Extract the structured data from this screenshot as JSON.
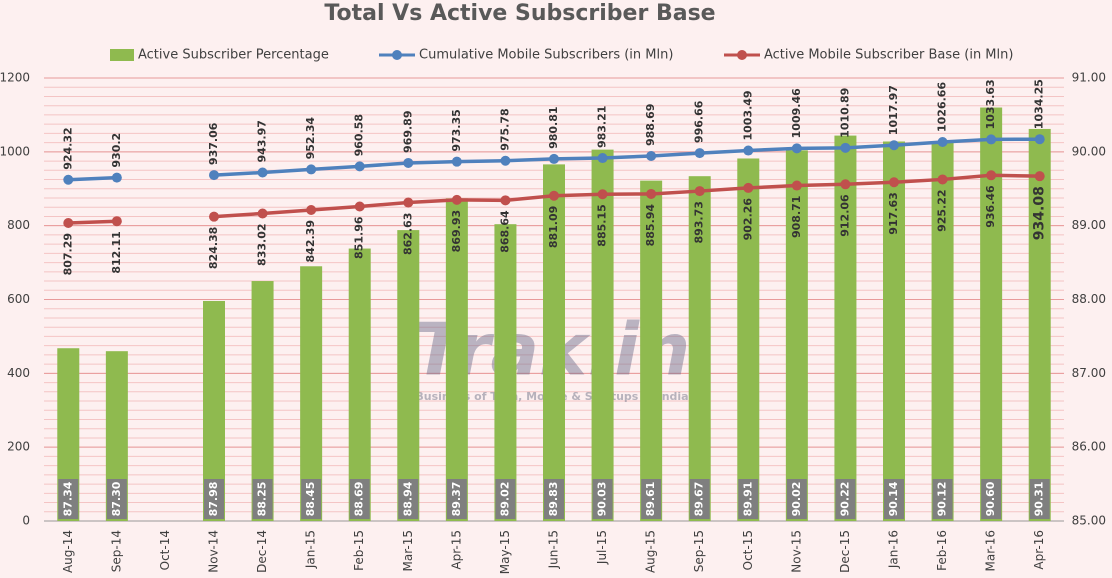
{
  "chart_data": {
    "type": "bar-line",
    "title": "Total Vs Active Subscriber Base",
    "watermark": "Trak.in",
    "watermark_subtitle": "Business of Tech, Mobile & Startups in India",
    "legend": "top",
    "grid": true,
    "categories": [
      "Aug-14",
      "Sep-14",
      "Oct-14",
      "Nov-14",
      "Dec-14",
      "Jan-15",
      "Feb-15",
      "Mar-15",
      "Apr-15",
      "May-15",
      "Jun-15",
      "Jul-15",
      "Aug-15",
      "Sep-15",
      "Oct-15",
      "Nov-15",
      "Dec-15",
      "Jan-16",
      "Feb-16",
      "Mar-16",
      "Apr-16"
    ],
    "ylim": [
      0,
      1200
    ],
    "yticks": [
      0,
      200,
      400,
      600,
      800,
      1000,
      1200
    ],
    "y2lim": [
      85,
      91
    ],
    "y2ticks": [
      {
        "value": 85,
        "label": "85.00"
      },
      {
        "value": 86,
        "label": "86.00"
      },
      {
        "value": 87,
        "label": "87.00"
      },
      {
        "value": 88,
        "label": "88.00"
      },
      {
        "value": 89,
        "label": "89.00"
      },
      {
        "value": 90,
        "label": "90.00"
      },
      {
        "value": 91,
        "label": "91.00"
      }
    ],
    "series": [
      {
        "name": "Active Subscriber Percentage",
        "type": "bar",
        "axis": "y2",
        "color": "#8fba4f",
        "values": [
          87.34,
          87.3,
          null,
          87.98,
          88.25,
          88.45,
          88.69,
          88.94,
          89.37,
          89.02,
          89.83,
          90.03,
          89.61,
          89.67,
          89.91,
          90.02,
          90.22,
          90.14,
          90.12,
          90.6,
          90.31
        ],
        "value_labels": [
          "87.34",
          "87.30",
          null,
          "87.98",
          "88.25",
          "88.45",
          "88.69",
          "88.94",
          "89.37",
          "89.02",
          "89.83",
          "90.03",
          "89.61",
          "89.67",
          "89.91",
          "90.02",
          "90.22",
          "90.14",
          "90.12",
          "90.60",
          "90.31"
        ]
      },
      {
        "name": "Cumulative Mobile Subscribers (in Mln)",
        "type": "line",
        "color": "#4f81bd",
        "values": [
          924.32,
          930.2,
          null,
          937.06,
          943.97,
          952.34,
          960.58,
          969.89,
          973.35,
          975.78,
          980.81,
          983.21,
          988.69,
          996.66,
          1003.49,
          1009.46,
          1010.89,
          1017.97,
          1026.66,
          1033.63,
          1034.25
        ]
      },
      {
        "name": "Active Mobile Subscriber Base (in Mln)",
        "type": "line",
        "color": "#c0504d",
        "values": [
          807.29,
          812.11,
          null,
          824.38,
          833.02,
          842.39,
          851.96,
          862.63,
          869.93,
          868.64,
          881.09,
          885.15,
          885.94,
          893.73,
          902.26,
          908.71,
          912.06,
          917.63,
          925.22,
          936.46,
          934.08
        ]
      }
    ]
  }
}
